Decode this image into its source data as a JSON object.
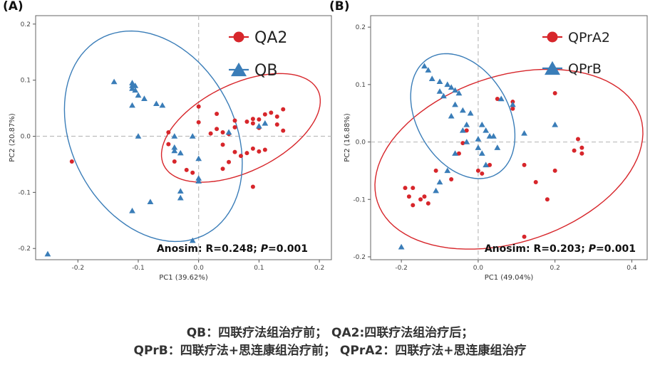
{
  "chart_data": [
    {
      "type": "scatter",
      "panel_label": "(A)",
      "xlabel": "PC1 (39.62%)",
      "ylabel": "PC2 (20.87%)",
      "xlim": [
        -0.27,
        0.22
      ],
      "ylim": [
        -0.22,
        0.215
      ],
      "xticks": [
        "-0.2",
        "-0.1",
        "0.0",
        "0.1",
        "0.2"
      ],
      "yticks": [
        "-0.2",
        "-0.1",
        "0.0",
        "0.1",
        "0.2"
      ],
      "annotation": {
        "prefix": "Anosim: R=0.248; ",
        "p_symbol": "P",
        "p_value": "=0.001"
      },
      "legend": {
        "position": "top-right",
        "entries": [
          "QA2",
          "QB"
        ]
      },
      "series": [
        {
          "name": "QA2",
          "color": "#d7262b",
          "marker": "circle",
          "ellipse": {
            "cx": 0.07,
            "cy": 0.015,
            "rx": 0.142,
            "ry": 0.078,
            "angle_deg": 26
          },
          "points": [
            [
              -0.21,
              -0.045
            ],
            [
              0.0,
              0.053
            ],
            [
              0.03,
              0.04
            ],
            [
              -0.05,
              0.007
            ],
            [
              -0.05,
              -0.014
            ],
            [
              -0.04,
              -0.045
            ],
            [
              -0.02,
              -0.06
            ],
            [
              -0.01,
              -0.065
            ],
            [
              0.0,
              0.025
            ],
            [
              0.03,
              0.013
            ],
            [
              0.06,
              0.016
            ],
            [
              0.06,
              0.028
            ],
            [
              0.08,
              0.026
            ],
            [
              0.09,
              0.031
            ],
            [
              0.1,
              0.03
            ],
            [
              0.11,
              0.039
            ],
            [
              0.12,
              0.042
            ],
            [
              0.13,
              0.035
            ],
            [
              0.14,
              0.048
            ],
            [
              0.13,
              0.021
            ],
            [
              0.14,
              0.01
            ],
            [
              0.1,
              0.015
            ],
            [
              0.09,
              0.023
            ],
            [
              0.05,
              0.004
            ],
            [
              0.04,
              -0.015
            ],
            [
              0.06,
              -0.028
            ],
            [
              0.07,
              -0.035
            ],
            [
              0.08,
              -0.03
            ],
            [
              0.09,
              -0.022
            ],
            [
              0.1,
              -0.027
            ],
            [
              0.11,
              -0.024
            ],
            [
              0.05,
              -0.046
            ],
            [
              0.04,
              -0.058
            ],
            [
              0.09,
              -0.09
            ],
            [
              0.02,
              0.005
            ],
            [
              0.04,
              0.007
            ]
          ]
        },
        {
          "name": "QB",
          "color": "#3a7db8",
          "marker": "triangle",
          "ellipse": {
            "cx": -0.075,
            "cy": 0.0,
            "rx": 0.135,
            "ry": 0.198,
            "angle_deg": 28
          },
          "points": [
            [
              -0.25,
              -0.21
            ],
            [
              -0.14,
              0.097
            ],
            [
              -0.11,
              0.095
            ],
            [
              -0.11,
              0.09
            ],
            [
              -0.105,
              0.09
            ],
            [
              -0.11,
              0.085
            ],
            [
              -0.105,
              0.082
            ],
            [
              -0.09,
              0.067
            ],
            [
              -0.1,
              0.073
            ],
            [
              -0.11,
              0.055
            ],
            [
              -0.07,
              0.058
            ],
            [
              -0.06,
              0.055
            ],
            [
              -0.1,
              0.0
            ],
            [
              -0.04,
              0.0
            ],
            [
              -0.04,
              -0.02
            ],
            [
              -0.03,
              -0.03
            ],
            [
              -0.01,
              0.0
            ],
            [
              0.0,
              -0.04
            ],
            [
              0.0,
              -0.075
            ],
            [
              -0.03,
              -0.098
            ],
            [
              -0.03,
              -0.11
            ],
            [
              -0.08,
              -0.117
            ],
            [
              -0.11,
              -0.133
            ],
            [
              -0.01,
              -0.186
            ],
            [
              0.1,
              0.018
            ],
            [
              0.11,
              0.023
            ],
            [
              0.05,
              0.007
            ],
            [
              -0.04,
              -0.026
            ],
            [
              0.0,
              -0.08
            ]
          ]
        }
      ]
    },
    {
      "type": "scatter",
      "panel_label": "(B)",
      "xlabel": "PC1 (49.04%)",
      "ylabel": "PC2 (16.88%)",
      "xlim": [
        -0.28,
        0.44
      ],
      "ylim": [
        -0.205,
        0.22
      ],
      "xticks": [
        "-0.2",
        "0.0",
        "0.2",
        "0.4"
      ],
      "yticks": [
        "-0.2",
        "-0.1",
        "0.0",
        "0.1",
        "0.2"
      ],
      "annotation": {
        "prefix": "Anosim: R=0.203; ",
        "p_symbol": "P",
        "p_value": "=0.001"
      },
      "legend": {
        "position": "top-right",
        "entries": [
          "QPrA2",
          "QPrB"
        ]
      },
      "series": [
        {
          "name": "QPrA2",
          "color": "#d7262b",
          "marker": "circle",
          "ellipse": {
            "cx": 0.08,
            "cy": -0.03,
            "rx": 0.36,
            "ry": 0.145,
            "angle_deg": 18
          },
          "points": [
            [
              -0.19,
              -0.08
            ],
            [
              -0.18,
              -0.095
            ],
            [
              -0.17,
              -0.11
            ],
            [
              -0.17,
              -0.08
            ],
            [
              -0.15,
              -0.1
            ],
            [
              -0.14,
              -0.095
            ],
            [
              -0.13,
              -0.107
            ],
            [
              -0.11,
              -0.05
            ],
            [
              -0.07,
              -0.065
            ],
            [
              -0.05,
              -0.02
            ],
            [
              -0.04,
              -0.002
            ],
            [
              -0.03,
              0.02
            ],
            [
              0.0,
              -0.05
            ],
            [
              0.01,
              -0.055
            ],
            [
              0.03,
              -0.04
            ],
            [
              0.05,
              0.075
            ],
            [
              0.09,
              0.07
            ],
            [
              0.09,
              0.058
            ],
            [
              0.12,
              -0.04
            ],
            [
              0.2,
              -0.05
            ],
            [
              0.2,
              0.085
            ],
            [
              0.25,
              -0.015
            ],
            [
              0.26,
              0.005
            ],
            [
              0.27,
              -0.01
            ],
            [
              0.27,
              -0.02
            ],
            [
              0.18,
              -0.1
            ],
            [
              0.15,
              -0.07
            ],
            [
              0.12,
              -0.165
            ]
          ]
        },
        {
          "name": "QPrB",
          "color": "#3a7db8",
          "marker": "triangle",
          "ellipse": {
            "cx": -0.04,
            "cy": 0.045,
            "rx": 0.175,
            "ry": 0.08,
            "angle_deg": -60
          },
          "points": [
            [
              -0.2,
              -0.183
            ],
            [
              -0.14,
              0.132
            ],
            [
              -0.13,
              0.125
            ],
            [
              -0.12,
              0.11
            ],
            [
              -0.1,
              0.105
            ],
            [
              -0.08,
              0.1
            ],
            [
              -0.07,
              0.095
            ],
            [
              -0.06,
              0.09
            ],
            [
              -0.05,
              0.085
            ],
            [
              -0.1,
              0.088
            ],
            [
              -0.09,
              0.08
            ],
            [
              -0.06,
              0.065
            ],
            [
              -0.04,
              0.055
            ],
            [
              -0.02,
              0.05
            ],
            [
              -0.03,
              0.03
            ],
            [
              0.01,
              0.03
            ],
            [
              0.02,
              0.02
            ],
            [
              0.03,
              0.01
            ],
            [
              0.04,
              0.01
            ],
            [
              0.0,
              0.005
            ],
            [
              -0.03,
              0.0
            ],
            [
              0.0,
              -0.01
            ],
            [
              0.01,
              -0.02
            ],
            [
              0.02,
              -0.04
            ],
            [
              -0.06,
              -0.02
            ],
            [
              -0.08,
              -0.05
            ],
            [
              -0.1,
              -0.07
            ],
            [
              -0.11,
              -0.085
            ],
            [
              0.06,
              0.075
            ],
            [
              0.09,
              0.065
            ],
            [
              0.12,
              0.015
            ],
            [
              0.2,
              0.03
            ],
            [
              -0.04,
              0.02
            ],
            [
              0.05,
              -0.01
            ],
            [
              -0.07,
              0.045
            ]
          ]
        }
      ]
    }
  ],
  "caption": {
    "line1": "QB：四联疗法组治疗前； QA2:四联疗法组治疗后；",
    "line2": "QPrB：四联疗法+思连康组治疗前； QPrA2：四联疗法+思连康组治疗"
  }
}
